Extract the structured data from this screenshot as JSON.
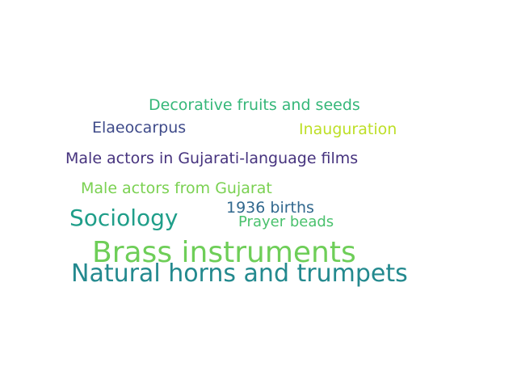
{
  "words": [
    {
      "text": "Decorative fruits and seeds",
      "color": "#35b779"
    },
    {
      "text": "Elaeocarpus",
      "color": "#3e4a89"
    },
    {
      "text": "Inauguration",
      "color": "#bddf26"
    },
    {
      "text": "Male actors in Gujarati-language films",
      "color": "#46337e"
    },
    {
      "text": "Male actors from Gujarat",
      "color": "#7ad151"
    },
    {
      "text": "Sociology",
      "color": "#1f9e89"
    },
    {
      "text": "1936 births",
      "color": "#31688e"
    },
    {
      "text": "Prayer beads",
      "color": "#4ac16d"
    },
    {
      "text": "Brass instruments",
      "color": "#6ece58"
    },
    {
      "text": "Natural horns and trumpets",
      "color": "#23898e"
    }
  ]
}
